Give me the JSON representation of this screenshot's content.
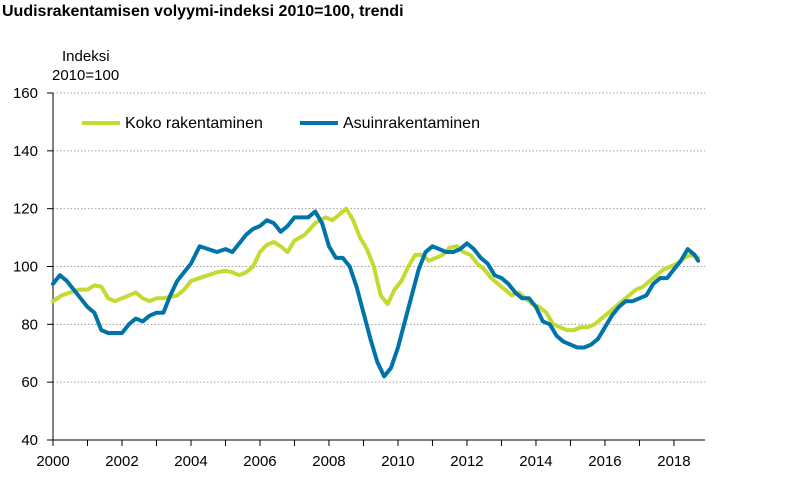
{
  "title": "Uudisrakentamisen volyymi-indeksi 2010=100, trendi",
  "chart_data": {
    "type": "line",
    "title": "Uudisrakentamisen volyymi-indeksi 2010=100, trendi",
    "ylabel_line1": "Indeksi",
    "ylabel_line2": "2010=100",
    "ylim": [
      40,
      160
    ],
    "xlim": [
      2000,
      2018.9
    ],
    "yticks": [
      40,
      60,
      80,
      100,
      120,
      140,
      160
    ],
    "xticks": [
      2000,
      2002,
      2004,
      2006,
      2008,
      2010,
      2012,
      2014,
      2016,
      2018
    ],
    "grid": "horizontal dotted",
    "legend_placement": "top-left",
    "series": [
      {
        "name": "Koko rakentaminen",
        "color": "#c5d931",
        "x": [
          2000,
          2000.25,
          2000.5,
          2000.75,
          2001,
          2001.2,
          2001.4,
          2001.6,
          2001.8,
          2002,
          2002.2,
          2002.4,
          2002.6,
          2002.8,
          2003,
          2003.2,
          2003.4,
          2003.6,
          2003.8,
          2004,
          2004.25,
          2004.5,
          2004.75,
          2005,
          2005.2,
          2005.4,
          2005.6,
          2005.8,
          2006,
          2006.2,
          2006.4,
          2006.6,
          2006.8,
          2007,
          2007.3,
          2007.6,
          2007.9,
          2008.1,
          2008.3,
          2008.5,
          2008.7,
          2008.9,
          2009.1,
          2009.3,
          2009.5,
          2009.7,
          2009.9,
          2010.1,
          2010.3,
          2010.5,
          2010.7,
          2010.9,
          2011.1,
          2011.3,
          2011.5,
          2011.7,
          2011.9,
          2012.1,
          2012.3,
          2012.5,
          2012.7,
          2012.9,
          2013.1,
          2013.3,
          2013.5,
          2013.7,
          2013.9,
          2014.1,
          2014.3,
          2014.5,
          2014.7,
          2014.9,
          2015.1,
          2015.3,
          2015.5,
          2015.7,
          2015.9,
          2016.1,
          2016.3,
          2016.5,
          2016.7,
          2016.9,
          2017.1,
          2017.3,
          2017.5,
          2017.7,
          2017.9,
          2018.1,
          2018.3,
          2018.5,
          2018.7
        ],
        "y": [
          88,
          90,
          91,
          92,
          92,
          93.5,
          93,
          89,
          88,
          89,
          90,
          91,
          89,
          88,
          89,
          89,
          89.5,
          90,
          92,
          95,
          96,
          97,
          98,
          98.5,
          98,
          97,
          98,
          100,
          105,
          107.5,
          108.5,
          107,
          105,
          109,
          111,
          115,
          117,
          116,
          118,
          120,
          116,
          110,
          106,
          100,
          90,
          87,
          92,
          95,
          100,
          104,
          104,
          102,
          103,
          104,
          106.5,
          107,
          105,
          104,
          101,
          99,
          96,
          94,
          92,
          90,
          91,
          89,
          87,
          86,
          84,
          80,
          79,
          78,
          78,
          79,
          79,
          80,
          82,
          84,
          86,
          88,
          90,
          92,
          93,
          95,
          97,
          99,
          100,
          101,
          103,
          104,
          103
        ]
      },
      {
        "name": "Asuinrakentaminen",
        "color": "#0073a8",
        "x": [
          2000,
          2000.2,
          2000.4,
          2000.6,
          2000.8,
          2001,
          2001.2,
          2001.4,
          2001.6,
          2001.8,
          2002,
          2002.2,
          2002.4,
          2002.6,
          2002.8,
          2003,
          2003.2,
          2003.4,
          2003.6,
          2003.8,
          2004,
          2004.25,
          2004.5,
          2004.75,
          2005,
          2005.2,
          2005.4,
          2005.6,
          2005.8,
          2006,
          2006.2,
          2006.4,
          2006.6,
          2006.8,
          2007,
          2007.2,
          2007.4,
          2007.6,
          2007.8,
          2008,
          2008.2,
          2008.4,
          2008.6,
          2008.8,
          2009,
          2009.2,
          2009.4,
          2009.6,
          2009.8,
          2010,
          2010.2,
          2010.4,
          2010.6,
          2010.8,
          2011,
          2011.2,
          2011.4,
          2011.6,
          2011.8,
          2012,
          2012.2,
          2012.4,
          2012.6,
          2012.8,
          2013,
          2013.2,
          2013.4,
          2013.6,
          2013.8,
          2014,
          2014.2,
          2014.4,
          2014.6,
          2014.8,
          2015,
          2015.2,
          2015.4,
          2015.6,
          2015.8,
          2016,
          2016.2,
          2016.4,
          2016.6,
          2016.8,
          2017,
          2017.2,
          2017.4,
          2017.6,
          2017.8,
          2018,
          2018.2,
          2018.4,
          2018.6,
          2018.7
        ],
        "y": [
          94,
          97,
          95,
          92,
          89,
          86,
          84,
          78,
          77,
          77,
          77,
          80,
          82,
          81,
          83,
          84,
          84,
          90,
          95,
          98,
          101,
          107,
          106,
          105,
          106,
          105,
          108,
          111,
          113,
          114,
          116,
          115,
          112,
          114,
          117,
          117,
          117,
          119,
          115,
          107,
          103,
          103,
          100,
          93,
          84,
          75,
          67,
          62,
          65,
          72,
          81,
          90,
          99,
          105,
          107,
          106,
          105,
          105,
          106,
          108,
          106,
          103,
          101,
          97,
          96,
          94,
          91,
          89,
          89,
          86,
          81,
          80,
          76,
          74,
          73,
          72,
          72,
          73,
          75,
          79,
          83,
          86,
          88,
          88,
          89,
          90,
          94,
          96,
          96,
          99,
          102,
          106,
          104,
          102
        ]
      }
    ]
  }
}
